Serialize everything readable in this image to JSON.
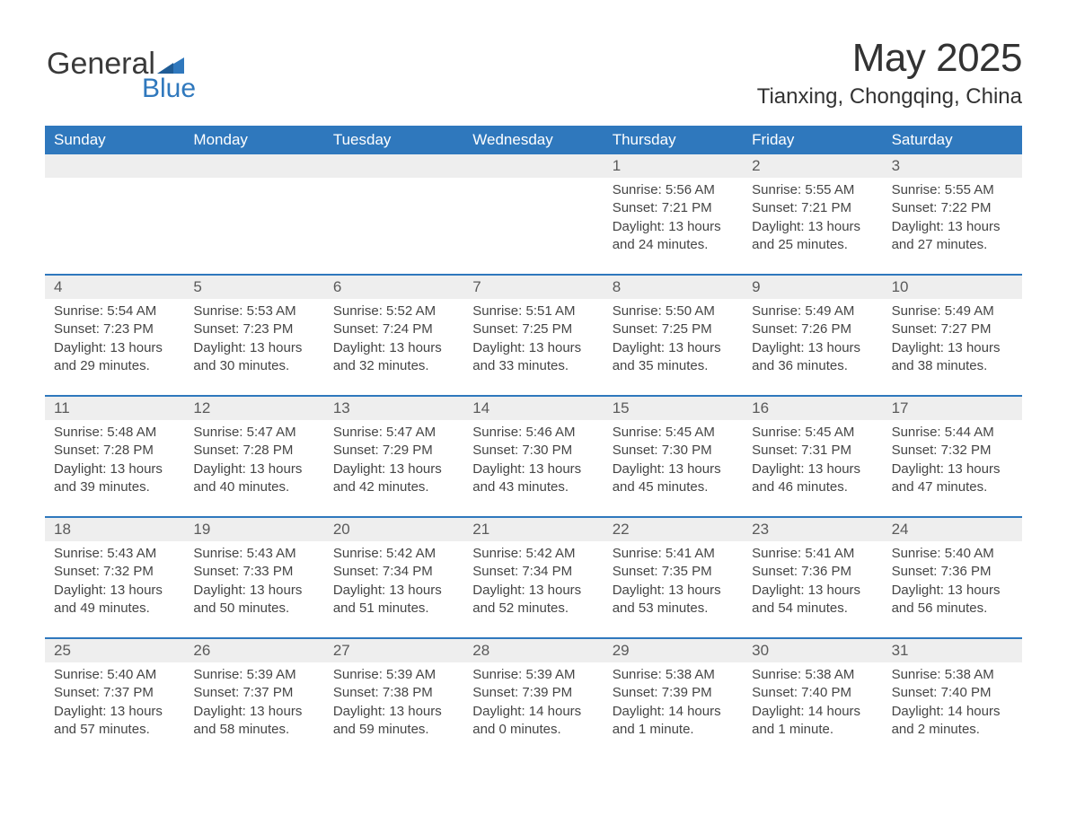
{
  "logo": {
    "word1": "General",
    "word2": "Blue"
  },
  "title": "May 2025",
  "subtitle": "Tianxing, Chongqing, China",
  "colors": {
    "header_bg": "#2f78bd",
    "header_text": "#ffffff",
    "daynum_bg": "#eeeeee",
    "daynum_text": "#5a5a5a",
    "body_text": "#454545",
    "rule": "#2f78bd",
    "page_bg": "#ffffff"
  },
  "typography": {
    "title_fontsize": 44,
    "subtitle_fontsize": 24,
    "header_fontsize": 17,
    "daynum_fontsize": 17,
    "cell_fontsize": 15
  },
  "weekdays": [
    "Sunday",
    "Monday",
    "Tuesday",
    "Wednesday",
    "Thursday",
    "Friday",
    "Saturday"
  ],
  "weeks": [
    [
      null,
      null,
      null,
      null,
      {
        "day": "1",
        "sunrise": "Sunrise: 5:56 AM",
        "sunset": "Sunset: 7:21 PM",
        "daylight": "Daylight: 13 hours and 24 minutes."
      },
      {
        "day": "2",
        "sunrise": "Sunrise: 5:55 AM",
        "sunset": "Sunset: 7:21 PM",
        "daylight": "Daylight: 13 hours and 25 minutes."
      },
      {
        "day": "3",
        "sunrise": "Sunrise: 5:55 AM",
        "sunset": "Sunset: 7:22 PM",
        "daylight": "Daylight: 13 hours and 27 minutes."
      }
    ],
    [
      {
        "day": "4",
        "sunrise": "Sunrise: 5:54 AM",
        "sunset": "Sunset: 7:23 PM",
        "daylight": "Daylight: 13 hours and 29 minutes."
      },
      {
        "day": "5",
        "sunrise": "Sunrise: 5:53 AM",
        "sunset": "Sunset: 7:23 PM",
        "daylight": "Daylight: 13 hours and 30 minutes."
      },
      {
        "day": "6",
        "sunrise": "Sunrise: 5:52 AM",
        "sunset": "Sunset: 7:24 PM",
        "daylight": "Daylight: 13 hours and 32 minutes."
      },
      {
        "day": "7",
        "sunrise": "Sunrise: 5:51 AM",
        "sunset": "Sunset: 7:25 PM",
        "daylight": "Daylight: 13 hours and 33 minutes."
      },
      {
        "day": "8",
        "sunrise": "Sunrise: 5:50 AM",
        "sunset": "Sunset: 7:25 PM",
        "daylight": "Daylight: 13 hours and 35 minutes."
      },
      {
        "day": "9",
        "sunrise": "Sunrise: 5:49 AM",
        "sunset": "Sunset: 7:26 PM",
        "daylight": "Daylight: 13 hours and 36 minutes."
      },
      {
        "day": "10",
        "sunrise": "Sunrise: 5:49 AM",
        "sunset": "Sunset: 7:27 PM",
        "daylight": "Daylight: 13 hours and 38 minutes."
      }
    ],
    [
      {
        "day": "11",
        "sunrise": "Sunrise: 5:48 AM",
        "sunset": "Sunset: 7:28 PM",
        "daylight": "Daylight: 13 hours and 39 minutes."
      },
      {
        "day": "12",
        "sunrise": "Sunrise: 5:47 AM",
        "sunset": "Sunset: 7:28 PM",
        "daylight": "Daylight: 13 hours and 40 minutes."
      },
      {
        "day": "13",
        "sunrise": "Sunrise: 5:47 AM",
        "sunset": "Sunset: 7:29 PM",
        "daylight": "Daylight: 13 hours and 42 minutes."
      },
      {
        "day": "14",
        "sunrise": "Sunrise: 5:46 AM",
        "sunset": "Sunset: 7:30 PM",
        "daylight": "Daylight: 13 hours and 43 minutes."
      },
      {
        "day": "15",
        "sunrise": "Sunrise: 5:45 AM",
        "sunset": "Sunset: 7:30 PM",
        "daylight": "Daylight: 13 hours and 45 minutes."
      },
      {
        "day": "16",
        "sunrise": "Sunrise: 5:45 AM",
        "sunset": "Sunset: 7:31 PM",
        "daylight": "Daylight: 13 hours and 46 minutes."
      },
      {
        "day": "17",
        "sunrise": "Sunrise: 5:44 AM",
        "sunset": "Sunset: 7:32 PM",
        "daylight": "Daylight: 13 hours and 47 minutes."
      }
    ],
    [
      {
        "day": "18",
        "sunrise": "Sunrise: 5:43 AM",
        "sunset": "Sunset: 7:32 PM",
        "daylight": "Daylight: 13 hours and 49 minutes."
      },
      {
        "day": "19",
        "sunrise": "Sunrise: 5:43 AM",
        "sunset": "Sunset: 7:33 PM",
        "daylight": "Daylight: 13 hours and 50 minutes."
      },
      {
        "day": "20",
        "sunrise": "Sunrise: 5:42 AM",
        "sunset": "Sunset: 7:34 PM",
        "daylight": "Daylight: 13 hours and 51 minutes."
      },
      {
        "day": "21",
        "sunrise": "Sunrise: 5:42 AM",
        "sunset": "Sunset: 7:34 PM",
        "daylight": "Daylight: 13 hours and 52 minutes."
      },
      {
        "day": "22",
        "sunrise": "Sunrise: 5:41 AM",
        "sunset": "Sunset: 7:35 PM",
        "daylight": "Daylight: 13 hours and 53 minutes."
      },
      {
        "day": "23",
        "sunrise": "Sunrise: 5:41 AM",
        "sunset": "Sunset: 7:36 PM",
        "daylight": "Daylight: 13 hours and 54 minutes."
      },
      {
        "day": "24",
        "sunrise": "Sunrise: 5:40 AM",
        "sunset": "Sunset: 7:36 PM",
        "daylight": "Daylight: 13 hours and 56 minutes."
      }
    ],
    [
      {
        "day": "25",
        "sunrise": "Sunrise: 5:40 AM",
        "sunset": "Sunset: 7:37 PM",
        "daylight": "Daylight: 13 hours and 57 minutes."
      },
      {
        "day": "26",
        "sunrise": "Sunrise: 5:39 AM",
        "sunset": "Sunset: 7:37 PM",
        "daylight": "Daylight: 13 hours and 58 minutes."
      },
      {
        "day": "27",
        "sunrise": "Sunrise: 5:39 AM",
        "sunset": "Sunset: 7:38 PM",
        "daylight": "Daylight: 13 hours and 59 minutes."
      },
      {
        "day": "28",
        "sunrise": "Sunrise: 5:39 AM",
        "sunset": "Sunset: 7:39 PM",
        "daylight": "Daylight: 14 hours and 0 minutes."
      },
      {
        "day": "29",
        "sunrise": "Sunrise: 5:38 AM",
        "sunset": "Sunset: 7:39 PM",
        "daylight": "Daylight: 14 hours and 1 minute."
      },
      {
        "day": "30",
        "sunrise": "Sunrise: 5:38 AM",
        "sunset": "Sunset: 7:40 PM",
        "daylight": "Daylight: 14 hours and 1 minute."
      },
      {
        "day": "31",
        "sunrise": "Sunrise: 5:38 AM",
        "sunset": "Sunset: 7:40 PM",
        "daylight": "Daylight: 14 hours and 2 minutes."
      }
    ]
  ]
}
